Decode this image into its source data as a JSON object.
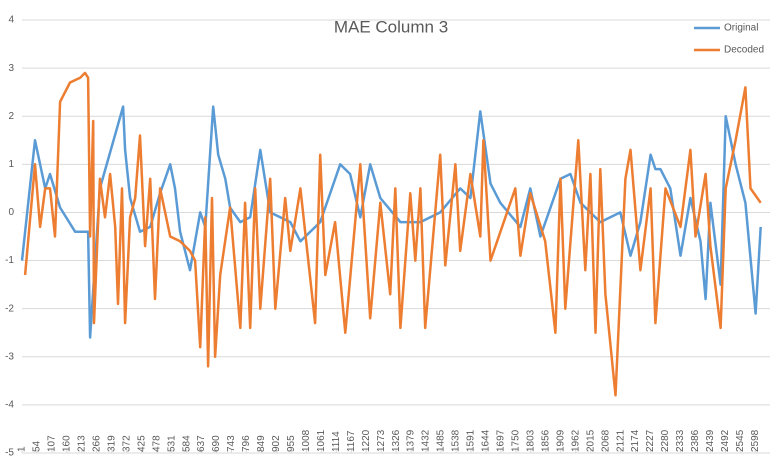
{
  "chart_data": {
    "type": "line",
    "title": "MAE Column 3",
    "xlim": [
      1,
      2650
    ],
    "xticks": [
      1,
      54,
      107,
      160,
      213,
      266,
      319,
      372,
      425,
      478,
      531,
      584,
      637,
      690,
      743,
      796,
      849,
      902,
      955,
      1008,
      1061,
      1114,
      1167,
      1220,
      1273,
      1326,
      1379,
      1432,
      1485,
      1538,
      1591,
      1644,
      1697,
      1750,
      1803,
      1856,
      1909,
      1962,
      2015,
      2068,
      2121,
      2174,
      2227,
      2280,
      2333,
      2386,
      2439,
      2492,
      2545,
      2598
    ],
    "ylim": [
      -5,
      4
    ],
    "yticks": [
      -5,
      -4,
      -3,
      -2,
      -1,
      0,
      1,
      2,
      3,
      4
    ],
    "grid": true,
    "legend": "top-right",
    "series": [
      {
        "name": "Original",
        "color": "#5b9bd5",
        "x": [
          1,
          47,
          83,
          100,
          136,
          189,
          235,
          242,
          277,
          359,
          366,
          384,
          419,
          455,
          490,
          526,
          543,
          561,
          596,
          632,
          650,
          678,
          696,
          721,
          738,
          774,
          809,
          845,
          880,
          951,
          987,
          1057,
          1128,
          1163,
          1199,
          1234,
          1270,
          1341,
          1412,
          1482,
          1553,
          1589,
          1624,
          1660,
          1695,
          1766,
          1801,
          1837,
          1908,
          1943,
          1979,
          2049,
          2120,
          2156,
          2191,
          2227,
          2244,
          2262,
          2297,
          2333,
          2368,
          2404,
          2422,
          2439,
          2475,
          2493,
          2528,
          2563,
          2599,
          2617
        ],
        "values": [
          -1,
          1.5,
          0.5,
          0.8,
          0.1,
          -0.4,
          -0.4,
          -2.6,
          0.5,
          2.2,
          1.3,
          0.3,
          -0.4,
          -0.3,
          0.4,
          1.0,
          0.5,
          -0.4,
          -1.2,
          0,
          -0.3,
          2.2,
          1.2,
          0.7,
          0.1,
          -0.2,
          -0.1,
          1.3,
          0,
          -0.2,
          -0.6,
          -0.2,
          1.0,
          0.8,
          -0.1,
          1.0,
          0.3,
          -0.2,
          -0.2,
          0,
          0.5,
          0.3,
          2.1,
          0.6,
          0.2,
          -0.3,
          0.5,
          -0.5,
          0.7,
          0.8,
          0.2,
          -0.2,
          0,
          -0.9,
          -0.2,
          1.2,
          0.9,
          0.9,
          0.5,
          -0.9,
          0.3,
          -0.6,
          -1.8,
          0.2,
          -1.5,
          2.0,
          1.0,
          0.2,
          -2.1,
          -0.3
        ]
      },
      {
        "name": "Decoded",
        "color": "#ed7d31",
        "x": [
          12,
          47,
          65,
          83,
          100,
          118,
          136,
          171,
          207,
          224,
          235,
          242,
          253,
          256,
          277,
          295,
          313,
          331,
          341,
          355,
          366,
          384,
          402,
          419,
          437,
          455,
          472,
          490,
          526,
          561,
          596,
          614,
          632,
          650,
          660,
          674,
          685,
          703,
          738,
          774,
          791,
          809,
          827,
          845,
          880,
          898,
          933,
          951,
          987,
          1039,
          1057,
          1075,
          1110,
          1146,
          1199,
          1234,
          1270,
          1305,
          1323,
          1341,
          1376,
          1394,
          1412,
          1429,
          1482,
          1500,
          1536,
          1553,
          1589,
          1624,
          1635,
          1660,
          1748,
          1766,
          1801,
          1854,
          1890,
          1908,
          1925,
          1971,
          1996,
          2014,
          2032,
          2049,
          2067,
          2103,
          2138,
          2156,
          2191,
          2227,
          2244,
          2280,
          2333,
          2368,
          2386,
          2422,
          2439,
          2475,
          2493,
          2528,
          2563,
          2581,
          2617
        ],
        "values": [
          -1.3,
          1.0,
          -0.3,
          0.5,
          0.5,
          -0.5,
          2.3,
          2.7,
          2.8,
          2.9,
          2.8,
          -0.5,
          1.9,
          -2.3,
          0.7,
          -0.1,
          0.8,
          -0.3,
          -1.9,
          0.5,
          -2.3,
          -0.1,
          0.3,
          1.6,
          -0.7,
          0.7,
          -1.8,
          0.5,
          -0.5,
          -0.6,
          -0.8,
          -1.0,
          -2.8,
          -0.1,
          -3.2,
          0.3,
          -3.0,
          -1.3,
          0.1,
          -2.4,
          0.2,
          -2.4,
          0.5,
          -2.0,
          0.7,
          -2.0,
          0.3,
          -0.8,
          0.5,
          -2.3,
          1.2,
          -1.3,
          -0.2,
          -2.5,
          1.0,
          -2.2,
          0.2,
          -1.7,
          0.5,
          -2.4,
          0.4,
          -1.0,
          0.5,
          -2.4,
          1.2,
          -1.1,
          1.0,
          -0.8,
          0.8,
          -0.5,
          1.5,
          -1.0,
          0.5,
          -0.9,
          0.4,
          -0.6,
          -2.5,
          0.7,
          -2.0,
          1.5,
          -1.2,
          0.8,
          -2.5,
          0.9,
          -1.7,
          -3.8,
          0.7,
          1.3,
          -1.2,
          0.5,
          -2.3,
          0.5,
          -0.3,
          1.3,
          -0.5,
          0.8,
          -0.7,
          -2.4,
          0.5,
          1.5,
          2.6,
          0.5,
          0.2
        ]
      }
    ]
  }
}
